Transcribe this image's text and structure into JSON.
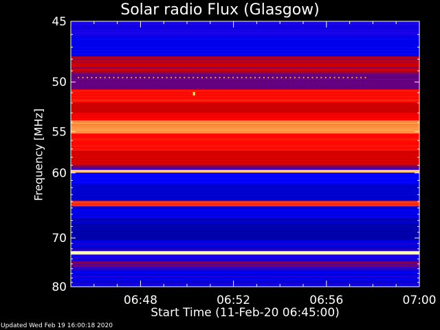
{
  "chart_data": {
    "type": "heatmap",
    "title": "Solar radio Flux (Glasgow)",
    "xlabel": "Start Time (11-Feb-20 06:45:00)",
    "ylabel": "Frequency [MHz]",
    "x_tick_labels": [
      "06:48",
      "06:52",
      "06:56",
      "07:00"
    ],
    "x_tick_minutes": [
      48,
      52,
      56,
      60
    ],
    "xlim_minutes": [
      45,
      60
    ],
    "y_ticks": [
      45,
      50,
      55,
      60,
      70,
      80
    ],
    "y_tick_labels": [
      "45",
      "50",
      "55",
      "60",
      "70",
      "80"
    ],
    "ylim": [
      45,
      80
    ],
    "y_scale": "reciprocal",
    "colormap": [
      "#00005a",
      "#0000ff",
      "#c80000",
      "#ff0000",
      "#ff9040",
      "#ffffb0"
    ],
    "bands": [
      {
        "from": 45.0,
        "to": 46.2,
        "level": 0.22
      },
      {
        "from": 46.2,
        "to": 47.8,
        "level": 0.18
      },
      {
        "from": 47.8,
        "to": 49.3,
        "level": 0.38
      },
      {
        "from": 49.3,
        "to": 50.7,
        "level": 0.3
      },
      {
        "from": 50.7,
        "to": 52.0,
        "level": 0.62
      },
      {
        "from": 52.0,
        "to": 53.0,
        "level": 0.42
      },
      {
        "from": 53.0,
        "to": 53.8,
        "level": 0.58
      },
      {
        "from": 53.8,
        "to": 55.2,
        "level": 0.8
      },
      {
        "from": 55.2,
        "to": 57.2,
        "level": 0.62
      },
      {
        "from": 57.2,
        "to": 59.0,
        "level": 0.45
      },
      {
        "from": 59.0,
        "to": 59.6,
        "level": 0.3
      },
      {
        "from": 59.6,
        "to": 60.0,
        "level": 0.88
      },
      {
        "from": 60.0,
        "to": 61.5,
        "level": 0.2
      },
      {
        "from": 61.5,
        "to": 64.0,
        "level": 0.14
      },
      {
        "from": 64.0,
        "to": 64.8,
        "level": 0.65
      },
      {
        "from": 64.8,
        "to": 67.5,
        "level": 0.16
      },
      {
        "from": 67.5,
        "to": 70.5,
        "level": 0.1
      },
      {
        "from": 70.5,
        "to": 72.5,
        "level": 0.18
      },
      {
        "from": 72.5,
        "to": 73.2,
        "level": 1.0
      },
      {
        "from": 73.2,
        "to": 74.5,
        "level": 0.22
      },
      {
        "from": 74.5,
        "to": 76.0,
        "level": 0.3
      },
      {
        "from": 76.0,
        "to": 80.0,
        "level": 0.18
      }
    ],
    "dotted_line": {
      "freq": 49.6,
      "x_from": 45.3,
      "x_to": 57.8,
      "color": "#ffa040"
    },
    "spot": {
      "freq": 51.1,
      "x": 50.3,
      "color": "#ffff60"
    }
  },
  "footer": {
    "updated": "Updated Wed Feb 19 16:00:18 2020"
  }
}
